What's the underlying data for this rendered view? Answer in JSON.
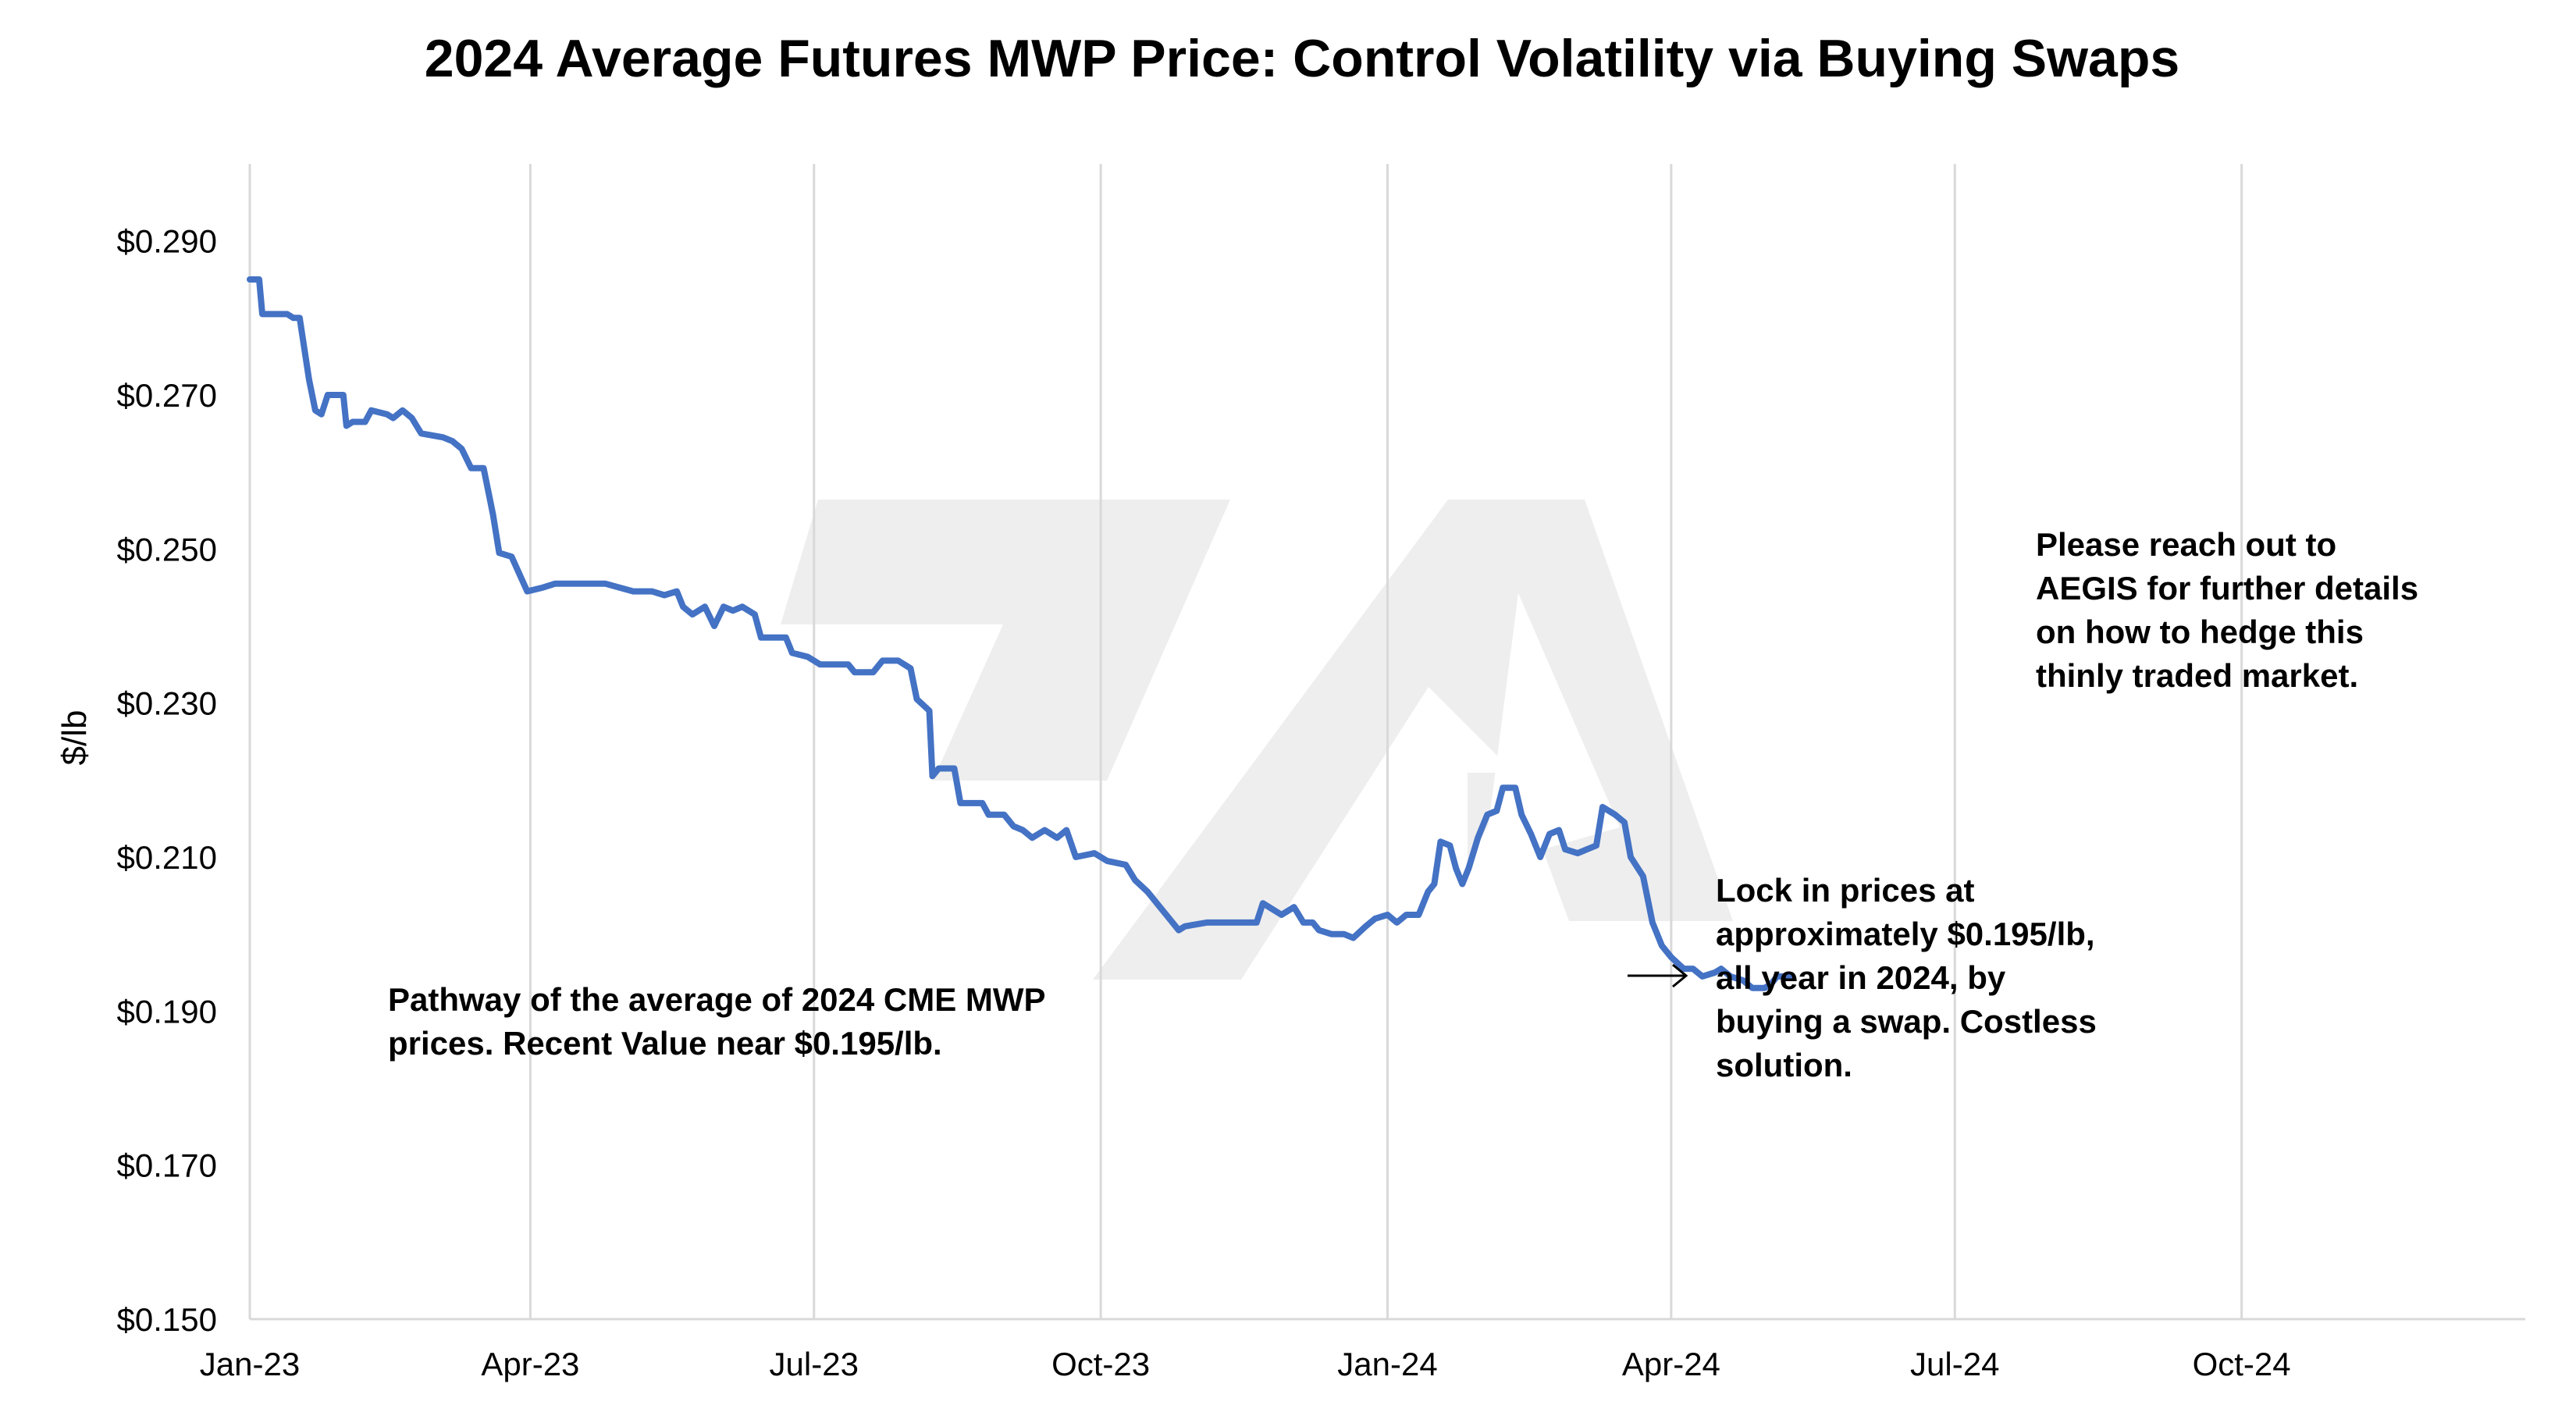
{
  "chart_data": {
    "type": "line",
    "title": "2024 Average Futures MWP Price: Control Volatility via Buying Swaps",
    "ylabel": "$/lb",
    "xlabel": "",
    "ylim": [
      0.15,
      0.3
    ],
    "y_ticks": [
      0.15,
      0.17,
      0.19,
      0.21,
      0.23,
      0.25,
      0.27,
      0.29
    ],
    "y_tick_labels": [
      "$0.150",
      "$0.170",
      "$0.190",
      "$0.210",
      "$0.230",
      "$0.250",
      "$0.270",
      "$0.290"
    ],
    "x_range": [
      "2023-01-01",
      "2024-12-31"
    ],
    "x_ticks": [
      "2023-01-01",
      "2023-04-01",
      "2023-07-01",
      "2023-10-01",
      "2024-01-01",
      "2024-04-01",
      "2024-07-01",
      "2024-10-01"
    ],
    "x_tick_labels": [
      "Jan-23",
      "Apr-23",
      "Jul-23",
      "Oct-23",
      "Jan-24",
      "Apr-24",
      "Jul-24",
      "Oct-24"
    ],
    "grid": "vertical",
    "line_color": "#4472c4",
    "series": [
      {
        "points": [
          [
            "2023-01-01",
            0.285
          ],
          [
            "2023-01-04",
            0.285
          ],
          [
            "2023-01-05",
            0.2805
          ],
          [
            "2023-01-13",
            0.2805
          ],
          [
            "2023-01-15",
            0.28
          ],
          [
            "2023-01-17",
            0.28
          ],
          [
            "2023-01-20",
            0.272
          ],
          [
            "2023-01-22",
            0.268
          ],
          [
            "2023-01-24",
            0.2675
          ],
          [
            "2023-01-26",
            0.27
          ],
          [
            "2023-01-31",
            0.27
          ],
          [
            "2023-02-01",
            0.266
          ],
          [
            "2023-02-03",
            0.2665
          ],
          [
            "2023-02-07",
            0.2665
          ],
          [
            "2023-02-09",
            0.268
          ],
          [
            "2023-02-14",
            0.2675
          ],
          [
            "2023-02-16",
            0.267
          ],
          [
            "2023-02-19",
            0.268
          ],
          [
            "2023-02-22",
            0.267
          ],
          [
            "2023-02-25",
            0.265
          ],
          [
            "2023-03-04",
            0.2645
          ],
          [
            "2023-03-07",
            0.264
          ],
          [
            "2023-03-10",
            0.263
          ],
          [
            "2023-03-13",
            0.2605
          ],
          [
            "2023-03-17",
            0.2605
          ],
          [
            "2023-03-20",
            0.2545
          ],
          [
            "2023-03-22",
            0.2495
          ],
          [
            "2023-03-26",
            0.249
          ],
          [
            "2023-03-31",
            0.2445
          ],
          [
            "2023-04-05",
            0.245
          ],
          [
            "2023-04-09",
            0.2455
          ],
          [
            "2023-04-25",
            0.2455
          ],
          [
            "2023-05-04",
            0.2445
          ],
          [
            "2023-05-10",
            0.2445
          ],
          [
            "2023-05-14",
            0.244
          ],
          [
            "2023-05-18",
            0.2445
          ],
          [
            "2023-05-20",
            0.2425
          ],
          [
            "2023-05-23",
            0.2415
          ],
          [
            "2023-05-27",
            0.2425
          ],
          [
            "2023-05-30",
            0.24
          ],
          [
            "2023-06-02",
            0.2425
          ],
          [
            "2023-06-05",
            0.242
          ],
          [
            "2023-06-08",
            0.2425
          ],
          [
            "2023-06-12",
            0.2415
          ],
          [
            "2023-06-14",
            0.2385
          ],
          [
            "2023-06-22",
            0.2385
          ],
          [
            "2023-06-24",
            0.2365
          ],
          [
            "2023-06-29",
            0.236
          ],
          [
            "2023-07-03",
            0.235
          ],
          [
            "2023-07-12",
            0.235
          ],
          [
            "2023-07-14",
            0.234
          ],
          [
            "2023-07-20",
            0.234
          ],
          [
            "2023-07-23",
            0.2355
          ],
          [
            "2023-07-28",
            0.2355
          ],
          [
            "2023-08-01",
            0.2345
          ],
          [
            "2023-08-03",
            0.2305
          ],
          [
            "2023-08-07",
            0.229
          ],
          [
            "2023-08-08",
            0.2205
          ],
          [
            "2023-08-10",
            0.2215
          ],
          [
            "2023-08-15",
            0.2215
          ],
          [
            "2023-08-17",
            0.217
          ],
          [
            "2023-08-24",
            0.217
          ],
          [
            "2023-08-26",
            0.2155
          ],
          [
            "2023-08-31",
            0.2155
          ],
          [
            "2023-09-03",
            0.214
          ],
          [
            "2023-09-06",
            0.2135
          ],
          [
            "2023-09-09",
            0.2125
          ],
          [
            "2023-09-13",
            0.2135
          ],
          [
            "2023-09-17",
            0.2125
          ],
          [
            "2023-09-20",
            0.2135
          ],
          [
            "2023-09-23",
            0.21
          ],
          [
            "2023-09-29",
            0.2105
          ],
          [
            "2023-10-03",
            0.2095
          ],
          [
            "2023-10-09",
            0.209
          ],
          [
            "2023-10-12",
            0.207
          ],
          [
            "2023-10-16",
            0.2055
          ],
          [
            "2023-10-20",
            0.2035
          ],
          [
            "2023-10-23",
            0.202
          ],
          [
            "2023-10-26",
            0.2005
          ],
          [
            "2023-10-28",
            0.201
          ],
          [
            "2023-11-04",
            0.2015
          ],
          [
            "2023-11-15",
            0.2015
          ],
          [
            "2023-11-20",
            0.2015
          ],
          [
            "2023-11-22",
            0.204
          ],
          [
            "2023-11-28",
            0.2025
          ],
          [
            "2023-12-02",
            0.2035
          ],
          [
            "2023-12-05",
            0.2015
          ],
          [
            "2023-12-08",
            0.2015
          ],
          [
            "2023-12-10",
            0.2005
          ],
          [
            "2023-12-14",
            0.2
          ],
          [
            "2023-12-18",
            0.2
          ],
          [
            "2023-12-21",
            0.1995
          ],
          [
            "2023-12-25",
            0.201
          ],
          [
            "2023-12-28",
            0.202
          ],
          [
            "2024-01-01",
            0.2025
          ],
          [
            "2024-01-04",
            0.2015
          ],
          [
            "2024-01-07",
            0.2025
          ],
          [
            "2024-01-11",
            0.2025
          ],
          [
            "2024-01-14",
            0.2055
          ],
          [
            "2024-01-16",
            0.2065
          ],
          [
            "2024-01-18",
            0.212
          ],
          [
            "2024-01-21",
            0.2115
          ],
          [
            "2024-01-23",
            0.2085
          ],
          [
            "2024-01-25",
            0.2065
          ],
          [
            "2024-01-27",
            0.2085
          ],
          [
            "2024-01-30",
            0.2125
          ],
          [
            "2024-02-02",
            0.2155
          ],
          [
            "2024-02-05",
            0.216
          ],
          [
            "2024-02-07",
            0.219
          ],
          [
            "2024-02-11",
            0.219
          ],
          [
            "2024-02-13",
            0.2155
          ],
          [
            "2024-02-16",
            0.213
          ],
          [
            "2024-02-19",
            0.21
          ],
          [
            "2024-02-22",
            0.213
          ],
          [
            "2024-02-25",
            0.2135
          ],
          [
            "2024-02-27",
            0.211
          ],
          [
            "2024-03-02",
            0.2105
          ],
          [
            "2024-03-05",
            0.211
          ],
          [
            "2024-03-08",
            0.2115
          ],
          [
            "2024-03-10",
            0.2165
          ],
          [
            "2024-03-14",
            0.2155
          ],
          [
            "2024-03-17",
            0.2145
          ],
          [
            "2024-03-19",
            0.21
          ],
          [
            "2024-03-23",
            0.2075
          ],
          [
            "2024-03-26",
            0.2015
          ],
          [
            "2024-03-29",
            0.1985
          ],
          [
            "2024-04-01",
            0.197
          ],
          [
            "2024-04-05",
            0.1955
          ],
          [
            "2024-04-08",
            0.1955
          ],
          [
            "2024-04-11",
            0.1945
          ],
          [
            "2024-04-15",
            0.195
          ],
          [
            "2024-04-17",
            0.1955
          ],
          [
            "2024-04-20",
            0.1945
          ],
          [
            "2024-04-24",
            0.194
          ],
          [
            "2024-04-27",
            0.193
          ],
          [
            "2024-05-01",
            0.193
          ],
          [
            "2024-05-03",
            0.1935
          ],
          [
            "2024-05-05",
            0.1945
          ],
          [
            "2024-05-10",
            0.1945
          ]
        ]
      }
    ],
    "annotations": [
      {
        "text_lines": [
          "Pathway of the average of 2024 CME MWP",
          "prices.  Recent Value near $0.195/lb."
        ]
      },
      {
        "text_lines": [
          "Lock in prices at",
          "approximately $0.195/lb,",
          "all year in 2024, by",
          "buying a swap. Costless",
          "solution."
        ]
      },
      {
        "text_lines": [
          "Please reach out to",
          "AEGIS for further details",
          "on how to hedge this",
          "thinly traded market."
        ]
      }
    ]
  }
}
